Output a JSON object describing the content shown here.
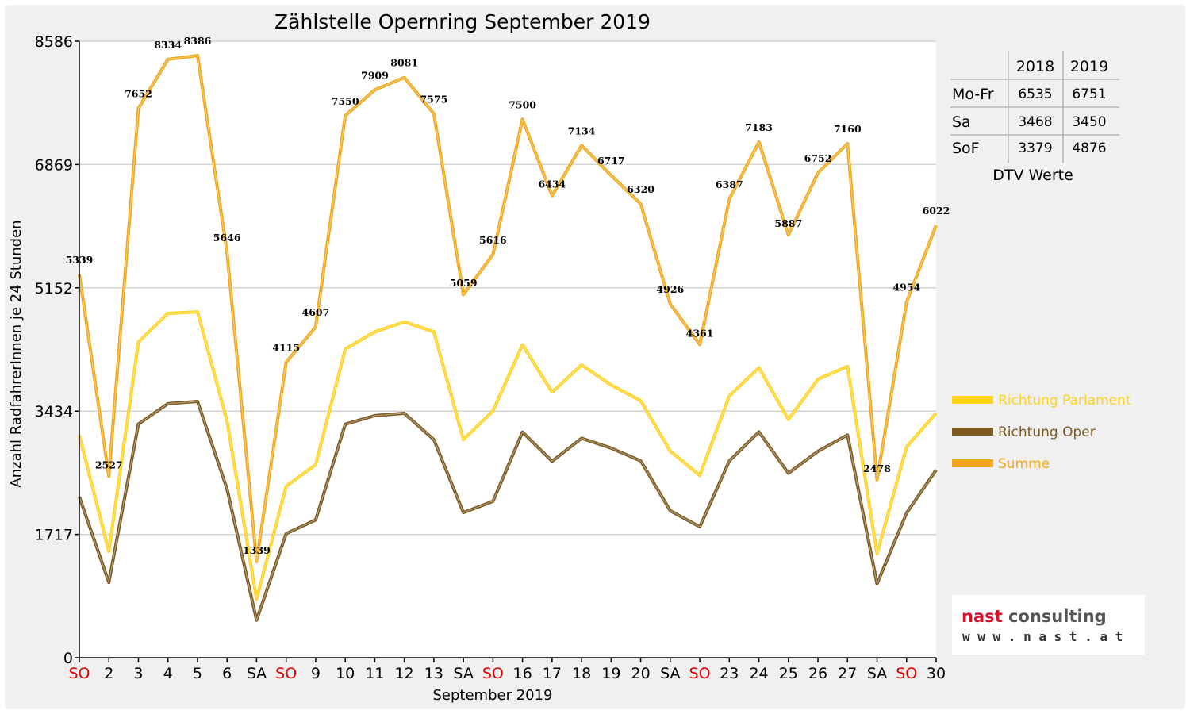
{
  "chart_data": {
    "type": "line",
    "title": "Zählstelle Opernring September 2019",
    "xlabel": "September 2019",
    "ylabel": "Anzahl RadfahrerInnen je 24 Stunden",
    "ylim": [
      0,
      8586
    ],
    "yticks": [
      "0",
      "1717",
      "3434",
      "5152",
      "6869",
      "8586"
    ],
    "categories": [
      "SO",
      "2",
      "3",
      "4",
      "5",
      "6",
      "SA",
      "SO",
      "9",
      "10",
      "11",
      "12",
      "13",
      "SA",
      "SO",
      "16",
      "17",
      "18",
      "19",
      "20",
      "SA",
      "SO",
      "23",
      "24",
      "25",
      "26",
      "27",
      "SA",
      "SO",
      "30"
    ],
    "weekend_color": "#e00000",
    "weekend_categories": [
      "SO"
    ],
    "grid": "horizontal",
    "legend_position": "right",
    "series": [
      {
        "name": "Richtung Parlament",
        "color": "#ffd21f",
        "values": [
          3098,
          1478,
          4398,
          4796,
          4817,
          3296,
          816,
          2388,
          2688,
          4298,
          4538,
          4678,
          4538,
          3038,
          3438,
          4358,
          3698,
          4078,
          3798,
          3578,
          2878,
          2538,
          3648,
          4038,
          3318,
          3878,
          4058,
          1448,
          2938,
          3408
        ]
      },
      {
        "name": "Richtung Oper",
        "color": "#7d5a22",
        "values": [
          2241,
          1049,
          3254,
          3538,
          3569,
          2350,
          523,
          1727,
          1919,
          3252,
          3371,
          3403,
          3037,
          2021,
          2178,
          3142,
          2736,
          3056,
          2919,
          2742,
          2048,
          1823,
          2739,
          3145,
          2569,
          2874,
          3102,
          1030,
          2016,
          2614
        ]
      },
      {
        "name": "Summe",
        "color": "#f0a81a",
        "label_series": true,
        "values": [
          5339,
          2527,
          7652,
          8334,
          8386,
          5646,
          1339,
          4115,
          4607,
          7550,
          7909,
          8081,
          7575,
          5059,
          5616,
          7500,
          6434,
          7134,
          6717,
          6320,
          4926,
          4361,
          6387,
          7183,
          5887,
          6752,
          7160,
          2478,
          4954,
          6022
        ]
      }
    ]
  },
  "dtv_table": {
    "caption": "DTV Werte",
    "headers": [
      "",
      "2018",
      "2019"
    ],
    "rows": [
      {
        "label": "Mo-Fr",
        "v2018": "6535",
        "v2019": "6751"
      },
      {
        "label": "Sa",
        "v2018": "3468",
        "v2019": "3450"
      },
      {
        "label": "SoF",
        "v2018": "3379",
        "v2019": "4876"
      }
    ]
  },
  "logo": {
    "line1_part1": "nast",
    "line1_part2": " consulting",
    "line2": "w w w . n a s t . a t",
    "color_part1": "#d0142c",
    "color_part2": "#555555"
  }
}
